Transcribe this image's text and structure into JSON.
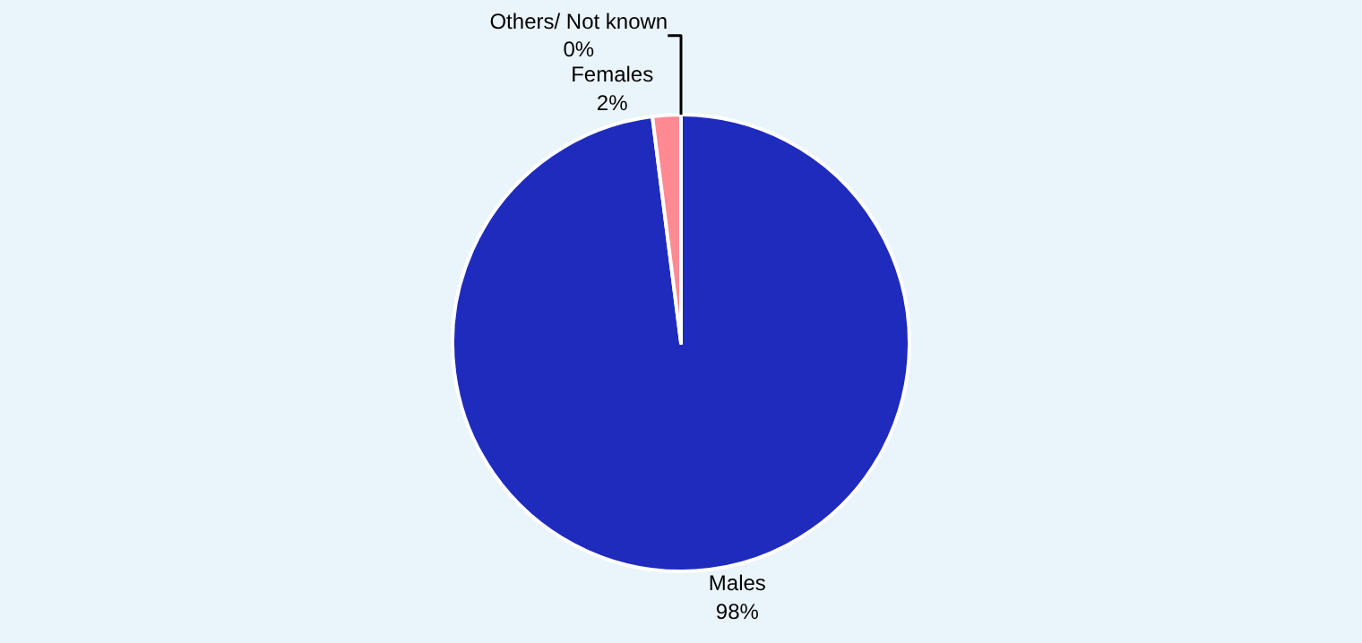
{
  "chart_data": {
    "type": "pie",
    "categories": [
      "Males",
      "Females",
      "Others/ Not known"
    ],
    "values": [
      98,
      2,
      0
    ],
    "colors": [
      "#1f2bbd",
      "#ff8a93",
      "#ffffff"
    ],
    "value_labels": [
      "98%",
      "2%",
      "0%"
    ],
    "legend": false
  }
}
